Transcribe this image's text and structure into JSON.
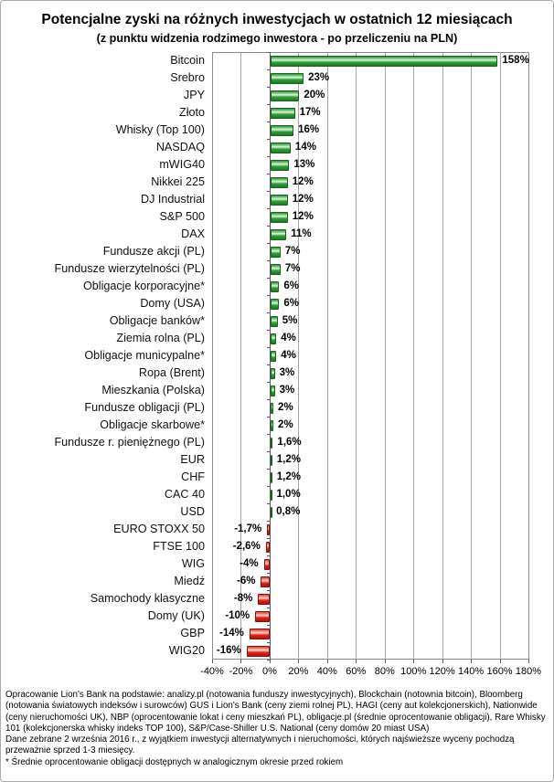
{
  "chart_data": {
    "type": "bar",
    "orientation": "horizontal",
    "title": "Potencjalne zyski na różnych inwestycjach w ostatnich 12 miesiącach",
    "subtitle": "(z punktu widzenia rodzimego inwestora - po przeliczeniu na PLN)",
    "categories": [
      "Bitcoin",
      "Srebro",
      "JPY",
      "Złoto",
      "Whisky (Top 100)",
      "NASDAQ",
      "mWIG40",
      "Nikkei 225",
      "DJ Industrial",
      "S&P 500",
      "DAX",
      "Fundusze akcji (PL)",
      "Fundusze wierzytelności (PL)",
      "Obligacje korporacyjne*",
      "Domy (USA)",
      "Obligacje banków*",
      "Ziemia rolna (PL)",
      "Obligacje municypalne*",
      "Ropa (Brent)",
      "Mieszkania (Polska)",
      "Fundusze obligacji (PL)",
      "Obligacje skarbowe*",
      "Fundusze r. pieniężnego (PL)",
      "EUR",
      "CHF",
      "CAC 40",
      "USD",
      "EURO STOXX 50",
      "FTSE 100",
      "WIG",
      "Miedź",
      "Samochody klasyczne",
      "Domy (UK)",
      "GBP",
      "WIG20"
    ],
    "values": [
      158,
      23,
      20,
      17,
      16,
      14,
      13,
      12,
      12,
      12,
      11,
      7,
      7,
      6,
      6,
      5,
      4,
      4,
      3,
      3,
      2,
      2,
      1.6,
      1.2,
      1.2,
      1.0,
      0.8,
      -1.7,
      -2.6,
      -4,
      -6,
      -8,
      -10,
      -14,
      -16
    ],
    "value_labels": [
      "158%",
      "23%",
      "20%",
      "17%",
      "16%",
      "14%",
      "13%",
      "12%",
      "12%",
      "12%",
      "11%",
      "7%",
      "7%",
      "6%",
      "6%",
      "5%",
      "4%",
      "4%",
      "3%",
      "3%",
      "2%",
      "2%",
      "1,6%",
      "1,2%",
      "1,2%",
      "1,0%",
      "0,8%",
      "-1,7%",
      "-2,6%",
      "-4%",
      "-6%",
      "-8%",
      "-10%",
      "-14%",
      "-16%"
    ],
    "x_tick_labels": [
      "-40%",
      "-20%",
      "0%",
      "20%",
      "40%",
      "60%",
      "80%",
      "100%",
      "120%",
      "140%",
      "160%",
      "180%"
    ],
    "x_tick_values": [
      -40,
      -20,
      0,
      20,
      40,
      60,
      80,
      100,
      120,
      140,
      160,
      180
    ],
    "xlim": [
      -40,
      180
    ],
    "grid": "vertical-gridlines",
    "legend": "none",
    "colors": {
      "positive_bar": "#2f9e38",
      "negative_bar": "#e2231a",
      "gridline": "#a6a6a6",
      "axis_line": "#595959",
      "plot_border": "#8c8c8c"
    }
  },
  "footer": {
    "source": "Opracowanie Lion's Bank na podstawie: analizy.pl (notowania funduszy inwestycyjnych), Blockchain (notownia bitcoin), Bloomberg (notowania światowych indeksów i surowców) GUS i Lion's Bank (ceny ziemi rolnej PL), HAGI (ceny aut kolekcjonerskich), Nationwide (ceny nieruchomości UK), NBP (oprocentowanie lokat i ceny mieszkań PL), obligacje.pl (średnie oprocentowanie obligacji), Rare Whisky 101 (kolekcjonerska whisky indeks TOP 100), S&P/Case-Shiller U.S. National (ceny domów 20 miast USA)",
    "note_collected": "Dane zebrane 2 września 2016 r., z wyjątkiem inwestycji alternatywnych i nieruchomości, których najświeższe wyceny pochodzą przeważnie sprzed 1-3 miesięcy.",
    "note_asterisk": "* Średnie oprocentowanie obligacji dostępnych w analogicznym okresie przed rokiem"
  }
}
